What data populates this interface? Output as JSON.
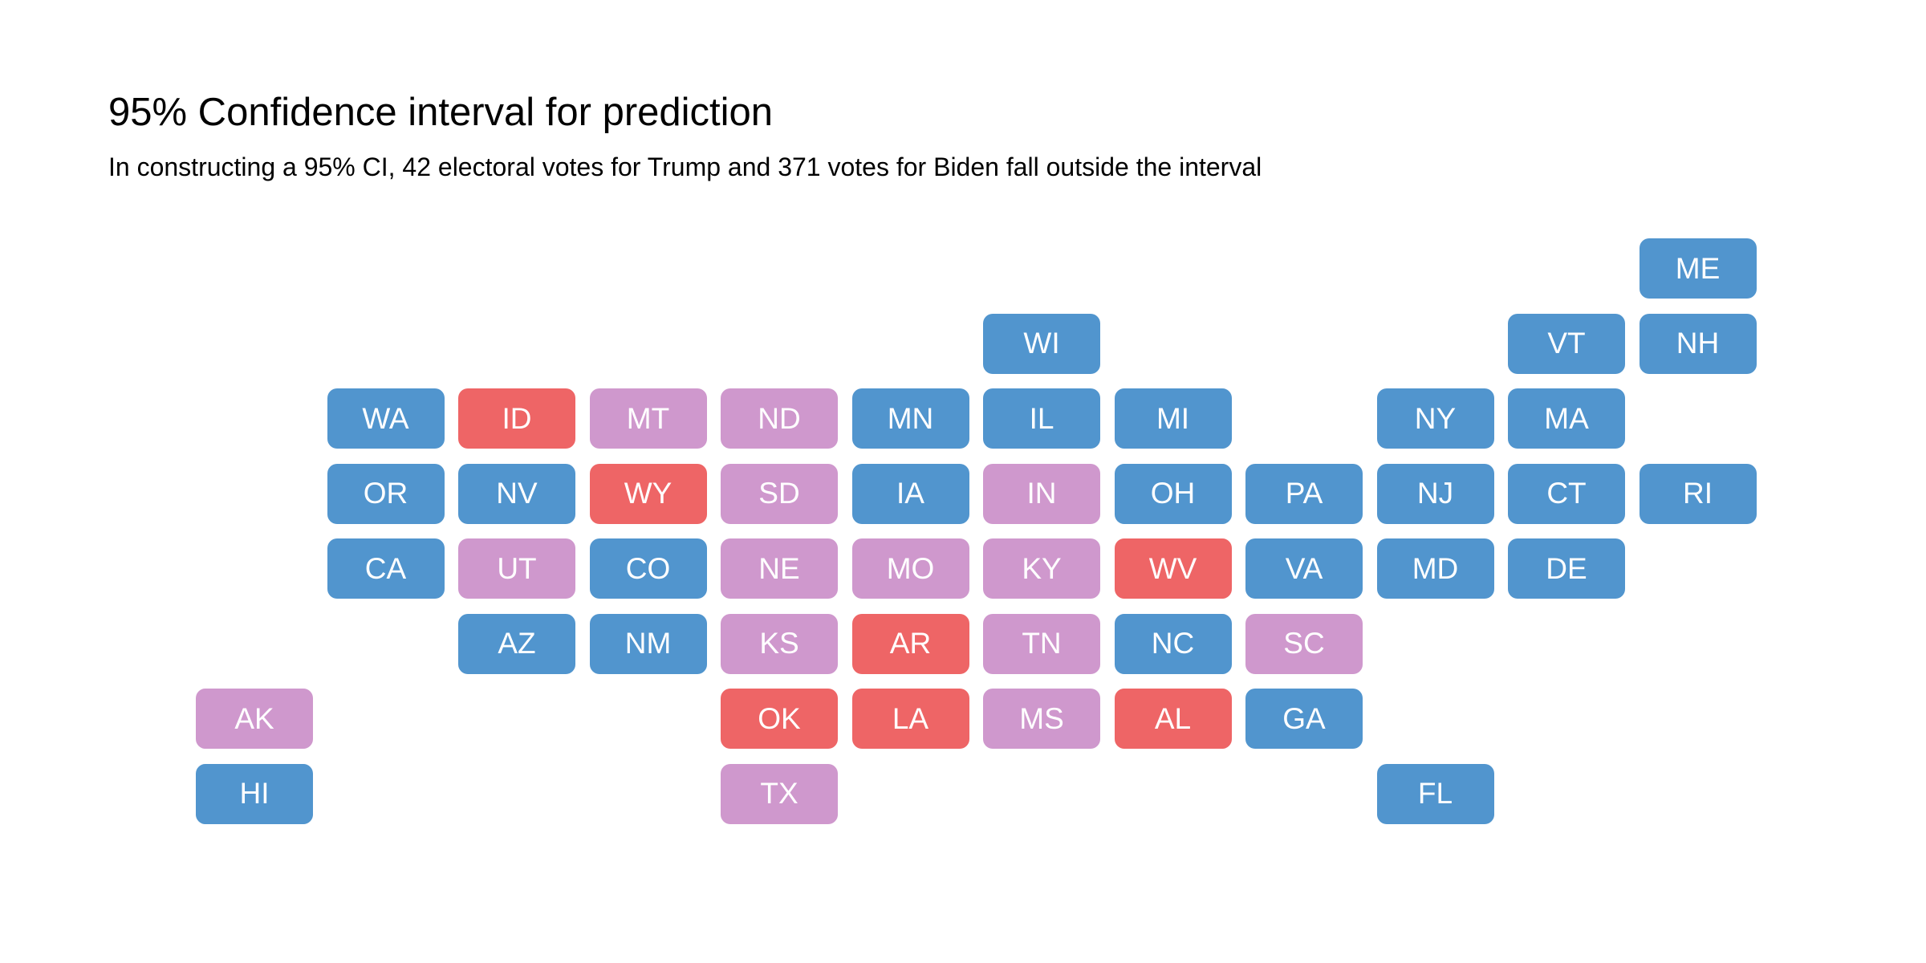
{
  "title": "95% Confidence interval for prediction",
  "subtitle": "In constructing a 95% CI, 42 electoral votes for Trump and 371 votes for Biden fall outside the interval",
  "colors": {
    "biden": "#5195CE",
    "trump": "#EE6566",
    "uncertain": "#CF98CD"
  },
  "states": [
    {
      "abbr": "ME",
      "col": 11,
      "row": 0,
      "cat": "biden"
    },
    {
      "abbr": "WI",
      "col": 6,
      "row": 1,
      "cat": "biden"
    },
    {
      "abbr": "VT",
      "col": 10,
      "row": 1,
      "cat": "biden"
    },
    {
      "abbr": "NH",
      "col": 11,
      "row": 1,
      "cat": "biden"
    },
    {
      "abbr": "WA",
      "col": 1,
      "row": 2,
      "cat": "biden"
    },
    {
      "abbr": "ID",
      "col": 2,
      "row": 2,
      "cat": "trump"
    },
    {
      "abbr": "MT",
      "col": 3,
      "row": 2,
      "cat": "uncertain"
    },
    {
      "abbr": "ND",
      "col": 4,
      "row": 2,
      "cat": "uncertain"
    },
    {
      "abbr": "MN",
      "col": 5,
      "row": 2,
      "cat": "biden"
    },
    {
      "abbr": "IL",
      "col": 6,
      "row": 2,
      "cat": "biden"
    },
    {
      "abbr": "MI",
      "col": 7,
      "row": 2,
      "cat": "biden"
    },
    {
      "abbr": "NY",
      "col": 9,
      "row": 2,
      "cat": "biden"
    },
    {
      "abbr": "MA",
      "col": 10,
      "row": 2,
      "cat": "biden"
    },
    {
      "abbr": "OR",
      "col": 1,
      "row": 3,
      "cat": "biden"
    },
    {
      "abbr": "NV",
      "col": 2,
      "row": 3,
      "cat": "biden"
    },
    {
      "abbr": "WY",
      "col": 3,
      "row": 3,
      "cat": "trump"
    },
    {
      "abbr": "SD",
      "col": 4,
      "row": 3,
      "cat": "uncertain"
    },
    {
      "abbr": "IA",
      "col": 5,
      "row": 3,
      "cat": "biden"
    },
    {
      "abbr": "IN",
      "col": 6,
      "row": 3,
      "cat": "uncertain"
    },
    {
      "abbr": "OH",
      "col": 7,
      "row": 3,
      "cat": "biden"
    },
    {
      "abbr": "PA",
      "col": 8,
      "row": 3,
      "cat": "biden"
    },
    {
      "abbr": "NJ",
      "col": 9,
      "row": 3,
      "cat": "biden"
    },
    {
      "abbr": "CT",
      "col": 10,
      "row": 3,
      "cat": "biden"
    },
    {
      "abbr": "RI",
      "col": 11,
      "row": 3,
      "cat": "biden"
    },
    {
      "abbr": "CA",
      "col": 1,
      "row": 4,
      "cat": "biden"
    },
    {
      "abbr": "UT",
      "col": 2,
      "row": 4,
      "cat": "uncertain"
    },
    {
      "abbr": "CO",
      "col": 3,
      "row": 4,
      "cat": "biden"
    },
    {
      "abbr": "NE",
      "col": 4,
      "row": 4,
      "cat": "uncertain"
    },
    {
      "abbr": "MO",
      "col": 5,
      "row": 4,
      "cat": "uncertain"
    },
    {
      "abbr": "KY",
      "col": 6,
      "row": 4,
      "cat": "uncertain"
    },
    {
      "abbr": "WV",
      "col": 7,
      "row": 4,
      "cat": "trump"
    },
    {
      "abbr": "VA",
      "col": 8,
      "row": 4,
      "cat": "biden"
    },
    {
      "abbr": "MD",
      "col": 9,
      "row": 4,
      "cat": "biden"
    },
    {
      "abbr": "DE",
      "col": 10,
      "row": 4,
      "cat": "biden"
    },
    {
      "abbr": "AZ",
      "col": 2,
      "row": 5,
      "cat": "biden"
    },
    {
      "abbr": "NM",
      "col": 3,
      "row": 5,
      "cat": "biden"
    },
    {
      "abbr": "KS",
      "col": 4,
      "row": 5,
      "cat": "uncertain"
    },
    {
      "abbr": "AR",
      "col": 5,
      "row": 5,
      "cat": "trump"
    },
    {
      "abbr": "TN",
      "col": 6,
      "row": 5,
      "cat": "uncertain"
    },
    {
      "abbr": "NC",
      "col": 7,
      "row": 5,
      "cat": "biden"
    },
    {
      "abbr": "SC",
      "col": 8,
      "row": 5,
      "cat": "uncertain"
    },
    {
      "abbr": "AK",
      "col": 0,
      "row": 6,
      "cat": "uncertain"
    },
    {
      "abbr": "OK",
      "col": 4,
      "row": 6,
      "cat": "trump"
    },
    {
      "abbr": "LA",
      "col": 5,
      "row": 6,
      "cat": "trump"
    },
    {
      "abbr": "MS",
      "col": 6,
      "row": 6,
      "cat": "uncertain"
    },
    {
      "abbr": "AL",
      "col": 7,
      "row": 6,
      "cat": "trump"
    },
    {
      "abbr": "GA",
      "col": 8,
      "row": 6,
      "cat": "biden"
    },
    {
      "abbr": "HI",
      "col": 0,
      "row": 7,
      "cat": "biden"
    },
    {
      "abbr": "TX",
      "col": 4,
      "row": 7,
      "cat": "uncertain"
    },
    {
      "abbr": "FL",
      "col": 9,
      "row": 7,
      "cat": "biden"
    }
  ]
}
